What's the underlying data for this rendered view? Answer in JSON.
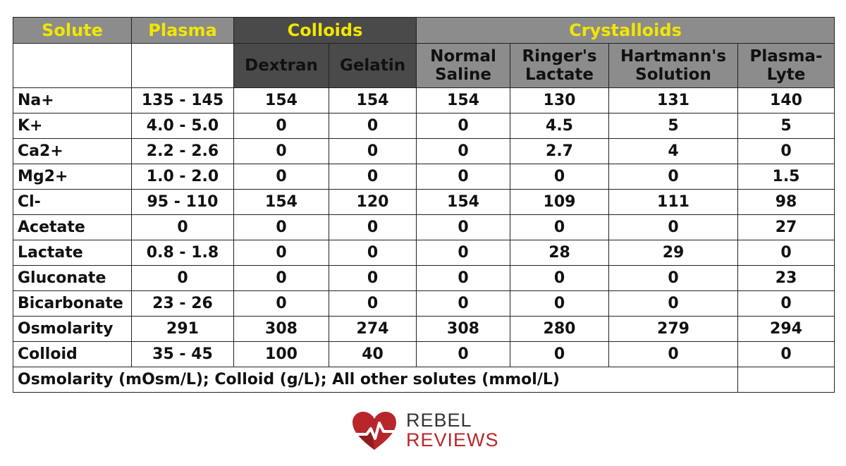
{
  "header": {
    "solute": "Solute",
    "plasma": "Plasma",
    "colloids": "Colloids",
    "crystalloids": "Crystalloids"
  },
  "subheaders": {
    "dextran": "Dextran",
    "gelatin": "Gelatin",
    "normal_saline": "Normal Saline",
    "ringers_lactate": "Ringer's Lactate",
    "hartmanns_solution": "Hartmann's Solution",
    "plasma_lyte": "Plasma-Lyte"
  },
  "rows": [
    {
      "solute": "Na+",
      "plasma": "135 - 145",
      "dextran": "154",
      "gelatin": "154",
      "normal_saline": "154",
      "ringers_lactate": "130",
      "hartmanns": "131",
      "plasma_lyte": "140"
    },
    {
      "solute": "K+",
      "plasma": "4.0 - 5.0",
      "dextran": "0",
      "gelatin": "0",
      "normal_saline": "0",
      "ringers_lactate": "4.5",
      "hartmanns": "5",
      "plasma_lyte": "5"
    },
    {
      "solute": "Ca2+",
      "plasma": "2.2 - 2.6",
      "dextran": "0",
      "gelatin": "0",
      "normal_saline": "0",
      "ringers_lactate": "2.7",
      "hartmanns": "4",
      "plasma_lyte": "0"
    },
    {
      "solute": "Mg2+",
      "plasma": "1.0 - 2.0",
      "dextran": "0",
      "gelatin": "0",
      "normal_saline": "0",
      "ringers_lactate": "0",
      "hartmanns": "0",
      "plasma_lyte": "1.5"
    },
    {
      "solute": "Cl-",
      "plasma": "95 - 110",
      "dextran": "154",
      "gelatin": "120",
      "normal_saline": "154",
      "ringers_lactate": "109",
      "hartmanns": "111",
      "plasma_lyte": "98"
    },
    {
      "solute": "Acetate",
      "plasma": "0",
      "dextran": "0",
      "gelatin": "0",
      "normal_saline": "0",
      "ringers_lactate": "0",
      "hartmanns": "0",
      "plasma_lyte": "27"
    },
    {
      "solute": "Lactate",
      "plasma": "0.8 - 1.8",
      "dextran": "0",
      "gelatin": "0",
      "normal_saline": "0",
      "ringers_lactate": "28",
      "hartmanns": "29",
      "plasma_lyte": "0"
    },
    {
      "solute": "Gluconate",
      "plasma": "0",
      "dextran": "0",
      "gelatin": "0",
      "normal_saline": "0",
      "ringers_lactate": "0",
      "hartmanns": "0",
      "plasma_lyte": "23"
    },
    {
      "solute": "Bicarbonate",
      "plasma": "23 - 26",
      "dextran": "0",
      "gelatin": "0",
      "normal_saline": "0",
      "ringers_lactate": "0",
      "hartmanns": "0",
      "plasma_lyte": "0"
    },
    {
      "solute": "Osmolarity",
      "plasma": "291",
      "dextran": "308",
      "gelatin": "274",
      "normal_saline": "308",
      "ringers_lactate": "280",
      "hartmanns": "279",
      "plasma_lyte": "294"
    },
    {
      "solute": "Colloid",
      "plasma": "35 - 45",
      "dextran": "100",
      "gelatin": "40",
      "normal_saline": "0",
      "ringers_lactate": "0",
      "hartmanns": "0",
      "plasma_lyte": "0"
    }
  ],
  "footnote": "Osmolarity (mOsm/L); Colloid (g/L); All other solutes (mmol/L)",
  "logo": {
    "line1": "REBEL",
    "line2": "REVIEWS",
    "icon": "heart-ecg-icon"
  },
  "colors": {
    "header_gray": "#8c8c8c",
    "header_dark": "#4a4a4a",
    "header_text_yellow": "#f2e600",
    "brand_red": "#b8262b"
  }
}
